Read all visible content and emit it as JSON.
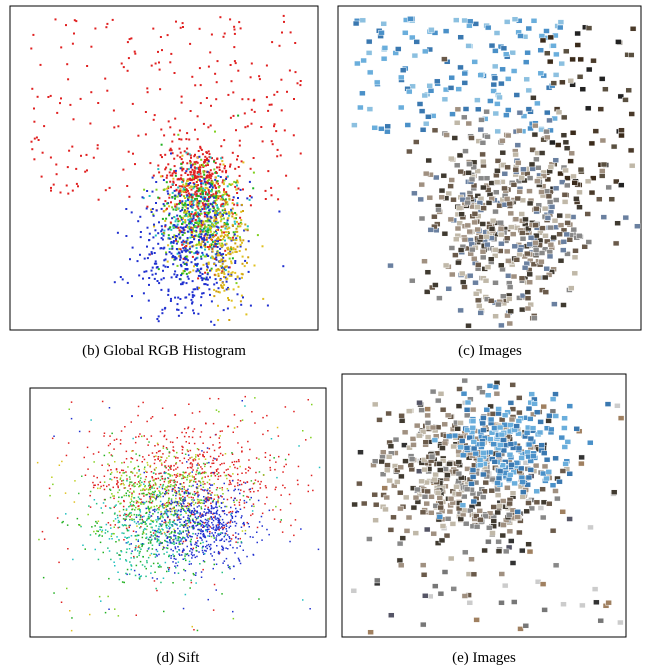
{
  "panels": [
    {
      "caption": "(b) Global RGB Histogram"
    },
    {
      "caption": "(c) Images"
    },
    {
      "caption": "(d) Sift"
    },
    {
      "caption": "(e) Images"
    }
  ]
}
